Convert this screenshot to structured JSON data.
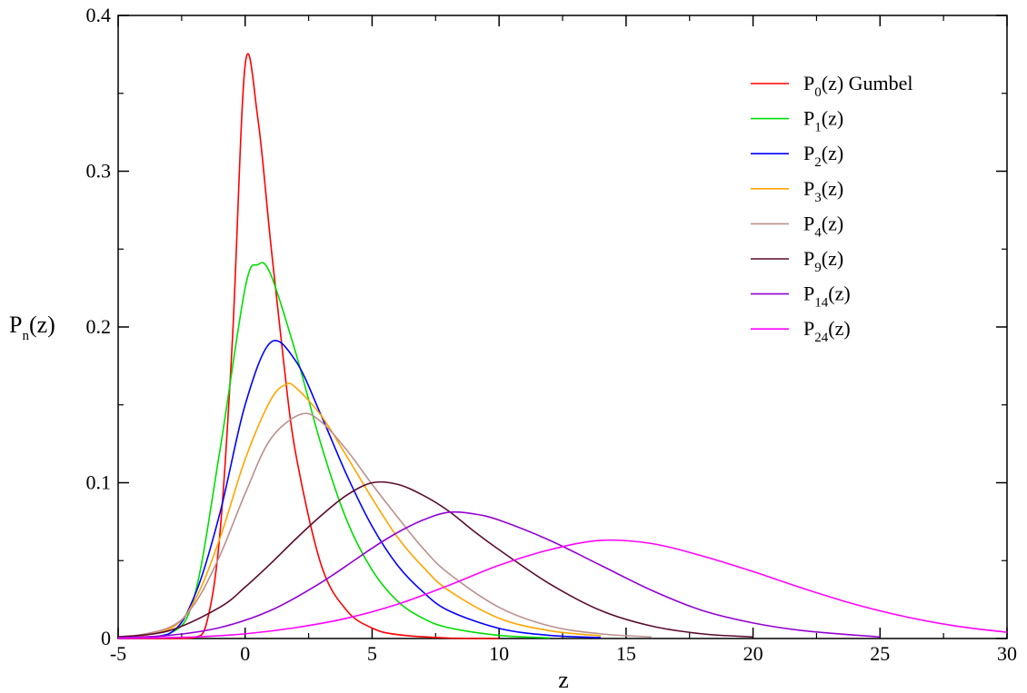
{
  "chart_data": {
    "type": "line",
    "title": "",
    "xlabel": "z",
    "ylabel": {
      "main": "P",
      "sub": "n",
      "suffix": "(z)"
    },
    "xlim": [
      -5,
      30
    ],
    "ylim": [
      0,
      0.4
    ],
    "x_ticks": [
      -5,
      0,
      5,
      10,
      15,
      20,
      25,
      30
    ],
    "y_ticks": [
      0,
      0.1,
      0.2,
      0.3,
      0.4
    ],
    "x_tick_labels": [
      "-5",
      "0",
      "5",
      "10",
      "15",
      "20",
      "25",
      "30"
    ],
    "y_tick_labels": [
      "0",
      "0.1",
      "0.2",
      "0.3",
      "0.4"
    ],
    "grid": false,
    "legend_position": "top-right",
    "series": [
      {
        "n": 0,
        "name_main": "P",
        "name_sub": "0",
        "name_suffix": "(z) Gumbel",
        "color": "#ff0000",
        "x": [
          -5,
          -3,
          -2,
          -1.5,
          -1,
          -0.5,
          0,
          0.5,
          1,
          1.5,
          2,
          3,
          4,
          5,
          6,
          8,
          10
        ],
        "y": [
          0,
          0,
          0.0005,
          0.011,
          0.066,
          0.192,
          0.368,
          0.334,
          0.255,
          0.18,
          0.118,
          0.047,
          0.018,
          0.0067,
          0.0025,
          0.0003,
          0
        ]
      },
      {
        "n": 1,
        "name_main": "P",
        "name_sub": "1",
        "name_suffix": "(z)",
        "color": "#00dd00",
        "x": [
          -5,
          -3,
          -2,
          -1,
          0,
          0.5,
          1,
          2,
          3,
          4,
          5,
          6,
          7,
          8,
          10,
          12
        ],
        "y": [
          0,
          0.003,
          0.027,
          0.12,
          0.225,
          0.24,
          0.234,
          0.183,
          0.124,
          0.076,
          0.044,
          0.024,
          0.013,
          0.007,
          0.002,
          0.0004
        ]
      },
      {
        "n": 2,
        "name_main": "P",
        "name_sub": "2",
        "name_suffix": "(z)",
        "color": "#0000ff",
        "x": [
          -5,
          -3,
          -2,
          -1,
          0,
          1,
          2,
          3,
          4,
          5,
          6,
          7,
          8,
          10,
          12,
          14
        ],
        "y": [
          0,
          0.003,
          0.027,
          0.08,
          0.15,
          0.19,
          0.178,
          0.143,
          0.105,
          0.072,
          0.047,
          0.03,
          0.018,
          0.0065,
          0.002,
          0.0006
        ]
      },
      {
        "n": 3,
        "name_main": "P",
        "name_sub": "3",
        "name_suffix": "(z)",
        "color": "#ffa500",
        "x": [
          -5,
          -3,
          -2,
          -1,
          0,
          1,
          1.6,
          2,
          3,
          4,
          5,
          6,
          7,
          8,
          10,
          12,
          14
        ],
        "y": [
          0,
          0.006,
          0.024,
          0.064,
          0.115,
          0.153,
          0.163,
          0.161,
          0.143,
          0.117,
          0.09,
          0.065,
          0.046,
          0.031,
          0.013,
          0.005,
          0.0017
        ]
      },
      {
        "n": 4,
        "name_main": "P",
        "name_sub": "4",
        "name_suffix": "(z)",
        "color": "#bc8f8f",
        "x": [
          -5,
          -3,
          -2,
          -1,
          0,
          1,
          2.2,
          3,
          4,
          5,
          6,
          7,
          8,
          10,
          12,
          14,
          16
        ],
        "y": [
          0,
          0.007,
          0.022,
          0.053,
          0.093,
          0.128,
          0.144,
          0.139,
          0.121,
          0.099,
          0.078,
          0.058,
          0.042,
          0.02,
          0.008,
          0.003,
          0.001
        ]
      },
      {
        "n": 9,
        "name_main": "P",
        "name_sub": "9",
        "name_suffix": "(z)",
        "color": "#5b0a2e",
        "x": [
          -5,
          -3,
          -1,
          0,
          1,
          2,
          3,
          4,
          5,
          6,
          7,
          8,
          9,
          10,
          12,
          14,
          16,
          18,
          20
        ],
        "y": [
          0.001,
          0.005,
          0.02,
          0.033,
          0.048,
          0.064,
          0.079,
          0.092,
          0.1,
          0.099,
          0.092,
          0.082,
          0.069,
          0.057,
          0.035,
          0.018,
          0.008,
          0.003,
          0.001
        ]
      },
      {
        "n": 14,
        "name_main": "P",
        "name_sub": "14",
        "name_suffix": "(z)",
        "color": "#9400d3",
        "x": [
          -5,
          -3,
          -1,
          1,
          3,
          5,
          6,
          7,
          8,
          9,
          10,
          12,
          14,
          16,
          18,
          20,
          22,
          25
        ],
        "y": [
          0.0005,
          0.002,
          0.007,
          0.018,
          0.036,
          0.058,
          0.068,
          0.076,
          0.081,
          0.08,
          0.076,
          0.063,
          0.047,
          0.031,
          0.018,
          0.01,
          0.005,
          0.001
        ]
      },
      {
        "n": 24,
        "name_main": "P",
        "name_sub": "24",
        "name_suffix": "(z)",
        "color": "#ff00ff",
        "x": [
          -5,
          -2,
          0,
          2,
          4,
          6,
          8,
          10,
          12,
          14,
          16,
          18,
          20,
          22,
          24,
          26,
          28,
          30
        ],
        "y": [
          0.0001,
          0.001,
          0.003,
          0.007,
          0.013,
          0.022,
          0.034,
          0.047,
          0.057,
          0.063,
          0.061,
          0.053,
          0.043,
          0.032,
          0.022,
          0.014,
          0.008,
          0.004
        ]
      }
    ]
  }
}
